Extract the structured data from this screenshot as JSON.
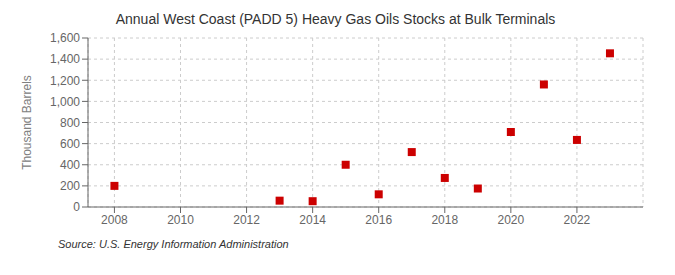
{
  "chart_data": {
    "type": "scatter",
    "title": "Annual West Coast (PADD 5) Heavy Gas Oils Stocks at Bulk Terminals",
    "y_label": "Thousand Barrels",
    "annotations": [
      "Source: U.S. Energy Information Administration"
    ],
    "x": [
      2008,
      2013,
      2014,
      2015,
      2016,
      2017,
      2018,
      2019,
      2020,
      2021,
      2022,
      2023
    ],
    "values": [
      200,
      60,
      55,
      400,
      120,
      520,
      275,
      175,
      710,
      1160,
      635,
      1455
    ],
    "color": "#cc0000",
    "marker": "square",
    "xlim": [
      2007.2,
      2024.0
    ],
    "ylim": [
      0,
      1600
    ],
    "xticks": [
      2008,
      2010,
      2012,
      2014,
      2016,
      2018,
      2020,
      2022
    ],
    "yticks": [
      0,
      200,
      400,
      600,
      {
        "value": 1000,
        "label": "1,000"
      },
      {
        "value": 1200,
        "label": "1,200"
      },
      {
        "value": 1400,
        "label": "1,400"
      },
      {
        "value": 1600,
        "label": "1,600"
      },
      800
    ],
    "grid": true
  }
}
